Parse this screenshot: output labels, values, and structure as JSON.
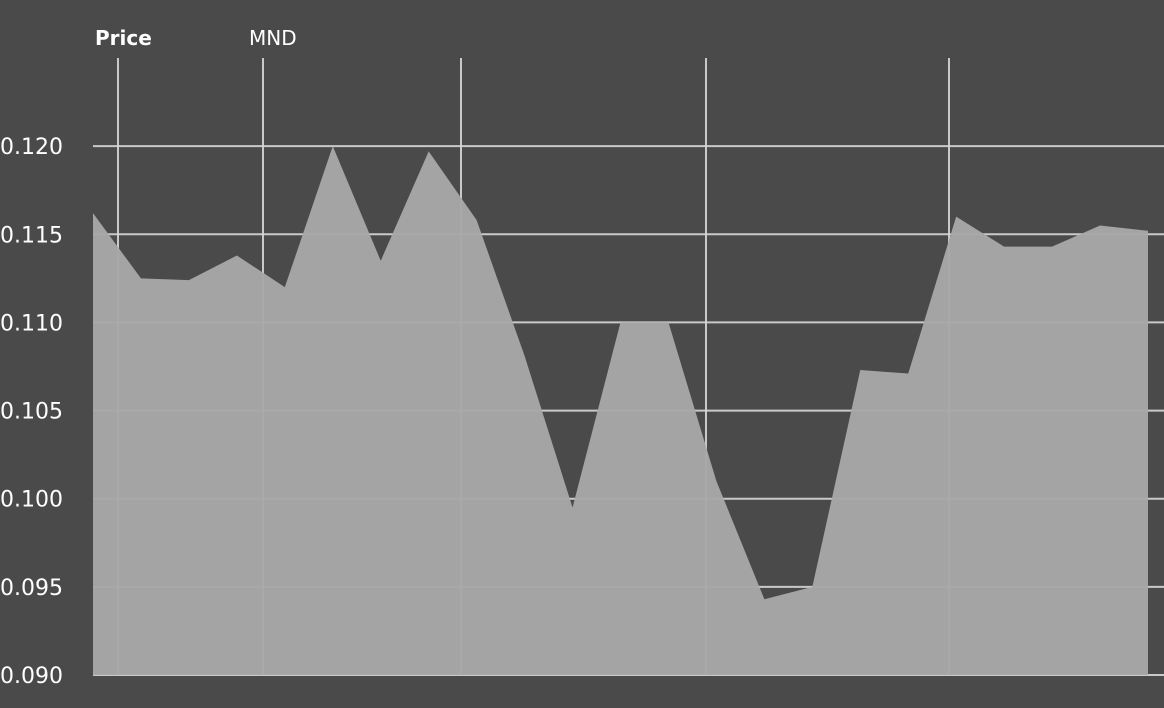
{
  "chart_data": {
    "type": "area",
    "title": "Price",
    "series_label": "MND",
    "ylim": [
      0.09,
      0.125
    ],
    "yticks": [
      "0.120",
      "0.115",
      "0.110",
      "0.105",
      "0.100",
      "0.095",
      "0.090"
    ],
    "grid": true,
    "colors": {
      "background": "#4a4a4a",
      "area": "#a8a8a8",
      "grid": "#d7d7d7",
      "text": "#ffffff"
    },
    "series": [
      {
        "values": [
          0.1162,
          0.1125,
          0.1124,
          0.1138,
          0.112,
          0.12,
          0.1135,
          0.1197,
          0.1158,
          0.1081,
          0.0995,
          0.11,
          0.11,
          0.101,
          0.0943,
          0.095,
          0.1073,
          0.1071,
          0.116,
          0.1143,
          0.1143,
          0.1155,
          0.1152
        ]
      }
    ]
  }
}
